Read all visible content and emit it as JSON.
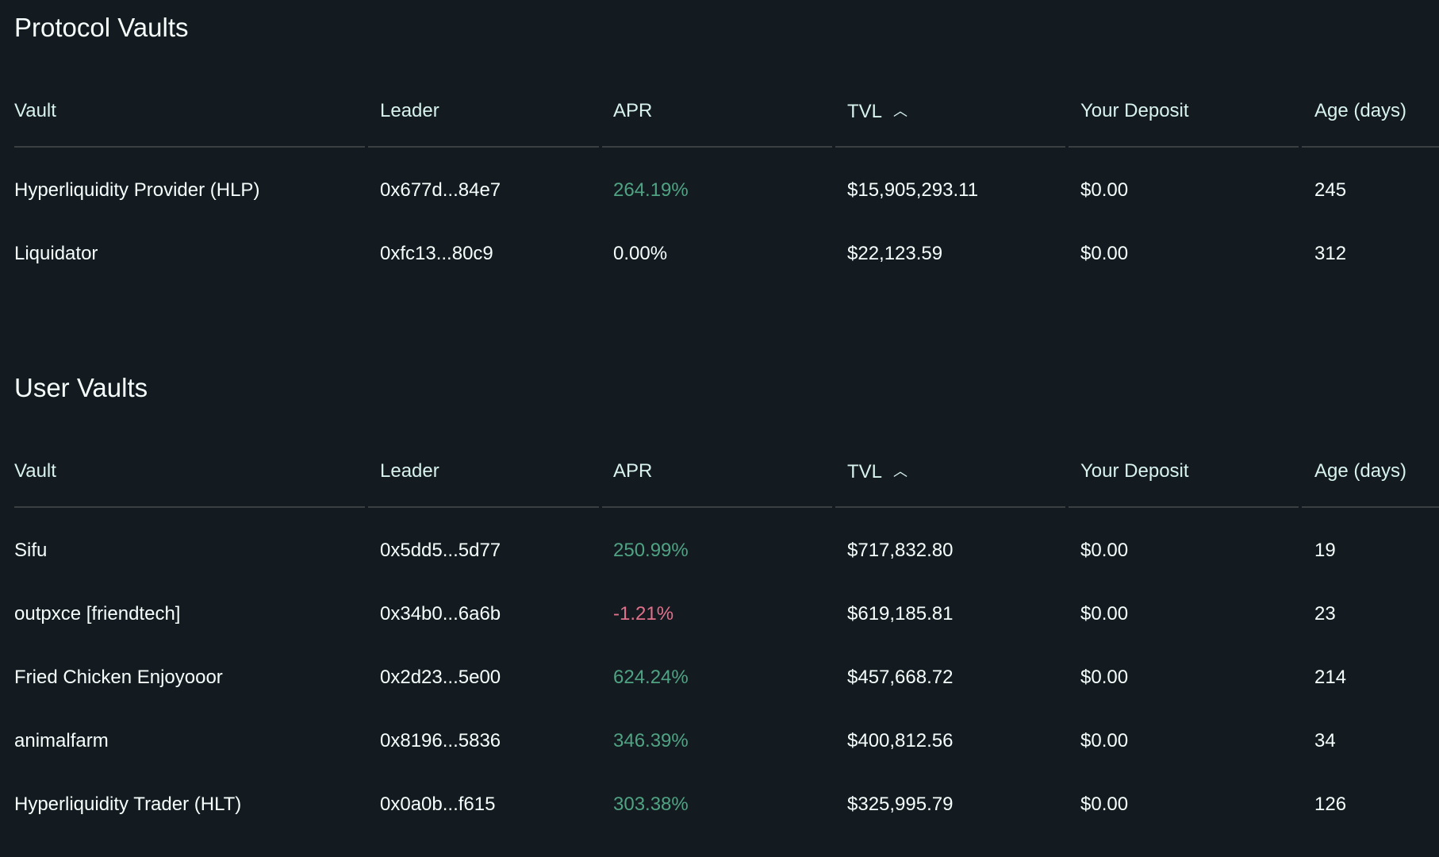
{
  "colors": {
    "background": "#131a20",
    "positive": "#4fa383",
    "negative": "#e0718a",
    "text": "#f6fefd"
  },
  "columns": [
    "Vault",
    "Leader",
    "APR",
    "TVL",
    "Your Deposit",
    "Age (days)"
  ],
  "sort": {
    "column": "TVL",
    "direction": "ascending",
    "icon": "chevron-up-icon"
  },
  "protocol": {
    "title": "Protocol Vaults",
    "rows": [
      {
        "vault": "Hyperliquidity Provider (HLP)",
        "leader": "0x677d...84e7",
        "apr": "264.19%",
        "apr_sign": "positive",
        "tvl": "$15,905,293.11",
        "deposit": "$0.00",
        "age": "245"
      },
      {
        "vault": "Liquidator",
        "leader": "0xfc13...80c9",
        "apr": "0.00%",
        "apr_sign": "neutral",
        "tvl": "$22,123.59",
        "deposit": "$0.00",
        "age": "312"
      }
    ]
  },
  "user": {
    "title": "User Vaults",
    "rows": [
      {
        "vault": "Sifu",
        "leader": "0x5dd5...5d77",
        "apr": "250.99%",
        "apr_sign": "positive",
        "tvl": "$717,832.80",
        "deposit": "$0.00",
        "age": "19"
      },
      {
        "vault": "outpxce [friendtech]",
        "leader": "0x34b0...6a6b",
        "apr": "-1.21%",
        "apr_sign": "negative",
        "tvl": "$619,185.81",
        "deposit": "$0.00",
        "age": "23"
      },
      {
        "vault": "Fried Chicken Enjoyooor",
        "leader": "0x2d23...5e00",
        "apr": "624.24%",
        "apr_sign": "positive",
        "tvl": "$457,668.72",
        "deposit": "$0.00",
        "age": "214"
      },
      {
        "vault": "animalfarm",
        "leader": "0x8196...5836",
        "apr": "346.39%",
        "apr_sign": "positive",
        "tvl": "$400,812.56",
        "deposit": "$0.00",
        "age": "34"
      },
      {
        "vault": "Hyperliquidity Trader (HLT)",
        "leader": "0x0a0b...f615",
        "apr": "303.38%",
        "apr_sign": "positive",
        "tvl": "$325,995.79",
        "deposit": "$0.00",
        "age": "126"
      }
    ]
  }
}
